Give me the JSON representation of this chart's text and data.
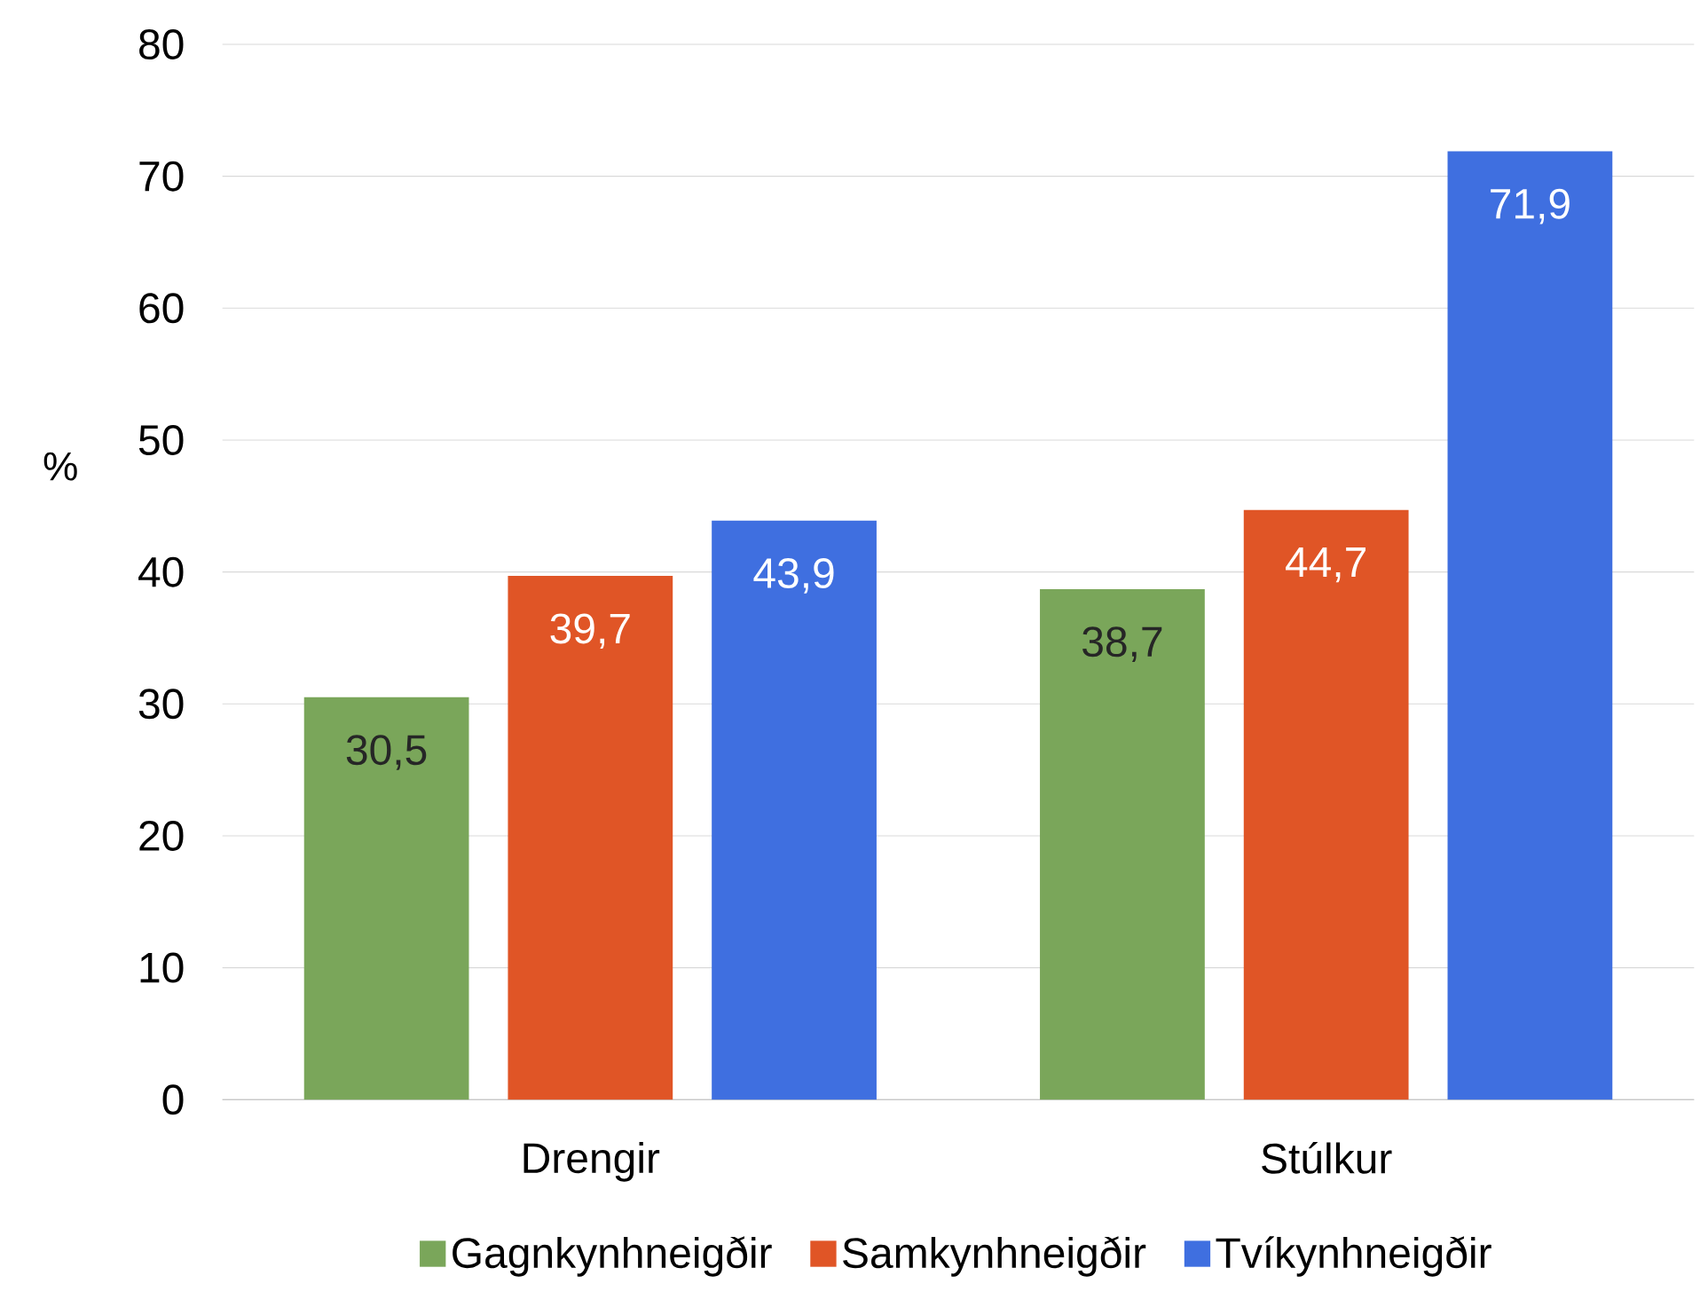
{
  "chart_data": {
    "type": "bar",
    "ylabel": "%",
    "categories": [
      "Drengir",
      "Stúlkur"
    ],
    "series": [
      {
        "name": "Gagnkynhneigðir",
        "color": "#7aa65a",
        "values": [
          30.5,
          38.7
        ],
        "value_labels": [
          "30,5",
          "38,7"
        ]
      },
      {
        "name": "Samkynhneigðir",
        "color": "#e05526",
        "values": [
          39.7,
          44.7
        ],
        "value_labels": [
          "39,7",
          "44,7"
        ]
      },
      {
        "name": "Tvíkynhneigðir",
        "color": "#3f6fe0",
        "values": [
          43.9,
          71.9
        ],
        "value_labels": [
          "43,9",
          "71,9"
        ]
      }
    ],
    "ylim": [
      0,
      80
    ],
    "yticks": [
      0,
      10,
      20,
      30,
      40,
      50,
      60,
      70,
      80
    ],
    "grid": "y",
    "legend": "bottom"
  }
}
